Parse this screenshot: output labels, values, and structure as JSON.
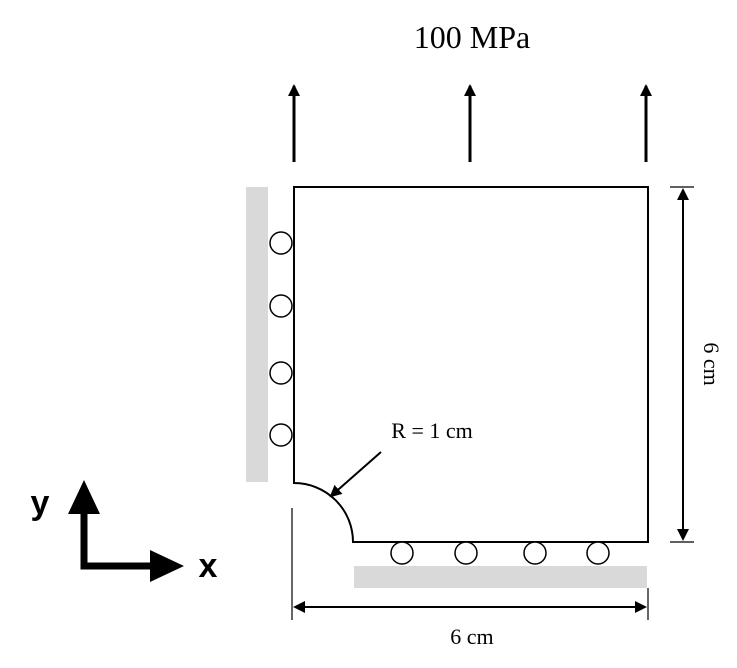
{
  "load": {
    "label": "100 MPa"
  },
  "radius": {
    "label": "R = 1 cm"
  },
  "dimensions": {
    "height_label": "6 cm",
    "width_label": "6 cm"
  },
  "axes": {
    "y_label": "y",
    "x_label": "x"
  },
  "colors": {
    "support": "#d9d9d9",
    "stroke": "#000000"
  }
}
